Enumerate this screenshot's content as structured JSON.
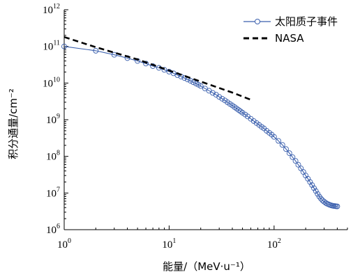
{
  "chart_data": {
    "type": "line",
    "title": "",
    "xlabel": "能量/（MeV·u⁻¹）",
    "ylabel": "积分通量/cm⁻²",
    "x_scale": "log",
    "y_scale": "log",
    "xlim": [
      1,
      500
    ],
    "ylim": [
      1000000,
      1000000000000
    ],
    "x_tick_labels": [
      {
        "base": "10",
        "exp": "0"
      },
      {
        "base": "10",
        "exp": "1"
      },
      {
        "base": "10",
        "exp": "2"
      }
    ],
    "y_tick_labels": [
      {
        "base": "10",
        "exp": "6"
      },
      {
        "base": "10",
        "exp": "7"
      },
      {
        "base": "10",
        "exp": "8"
      },
      {
        "base": "10",
        "exp": "9"
      },
      {
        "base": "10",
        "exp": "10"
      },
      {
        "base": "10",
        "exp": "11"
      },
      {
        "base": "10",
        "exp": "12"
      }
    ],
    "grid": false,
    "legend_position": "top-right",
    "series": [
      {
        "name": "太阳质子事件",
        "color": "#3a5fad",
        "style": "solid-line-with-open-circles",
        "x": [
          1,
          2,
          3,
          4,
          5,
          6,
          7,
          8,
          9,
          10,
          11,
          12,
          13,
          14,
          15,
          16,
          17,
          18,
          19,
          20,
          22,
          24,
          26,
          28,
          30,
          32,
          34,
          36,
          38,
          40,
          42,
          44,
          46,
          48,
          50,
          53,
          56,
          60,
          64,
          68,
          72,
          76,
          80,
          85,
          90,
          95,
          100,
          110,
          120,
          130,
          140,
          150,
          160,
          170,
          180,
          190,
          200,
          210,
          220,
          230,
          240,
          250,
          260,
          270,
          280,
          290,
          300,
          310,
          320,
          330,
          340,
          350,
          360,
          370,
          380,
          390,
          400
        ],
        "y": [
          100000000000.0,
          76000000000.0,
          59000000000.0,
          48000000000.0,
          40000000000.0,
          34000000000.0,
          29000000000.0,
          26000000000.0,
          23000000000.0,
          20500000000.0,
          18500000000.0,
          16500000000.0,
          15000000000.0,
          13700000000.0,
          12500000000.0,
          11500000000.0,
          10500000000.0,
          9700000000.0,
          9000000000.0,
          8300000000.0,
          7100000000.0,
          6200000000.0,
          5400000000.0,
          4800000000.0,
          4200000000.0,
          3750000000.0,
          3350000000.0,
          3000000000.0,
          2700000000.0,
          2450000000.0,
          2220000000.0,
          2020000000.0,
          1840000000.0,
          1680000000.0,
          1550000000.0,
          1380000000.0,
          1230000000.0,
          1060000000.0,
          920000000.0,
          810000000.0,
          720000000.0,
          640000000.0,
          580000000.0,
          500000000.0,
          440000000.0,
          390000000.0,
          340000000.0,
          265000000.0,
          205000000.0,
          158000000.0,
          122000000.0,
          95000000.0,
          75000000.0,
          59000000.0,
          47000000.0,
          37500000.0,
          30000000.0,
          24500000.0,
          20000000.0,
          16500000.0,
          13600000.0,
          11300000.0,
          9400000.0,
          8000000.0,
          7000000.0,
          6300000.0,
          5800000.0,
          5400000.0,
          5100000.0,
          4900000.0,
          4750000.0,
          4600000.0,
          4500000.0,
          4450000.0,
          4400000.0,
          4350000.0,
          4300000.0
        ]
      },
      {
        "name": "NASA",
        "color": "#000000",
        "style": "dashed-line",
        "x": [
          1,
          2,
          5,
          10,
          20,
          40,
          60
        ],
        "y": [
          180000000000.0,
          95000000000.0,
          44000000000.0,
          22000000000.0,
          11000000000.0,
          5500000000.0,
          3500000000.0
        ]
      }
    ]
  }
}
